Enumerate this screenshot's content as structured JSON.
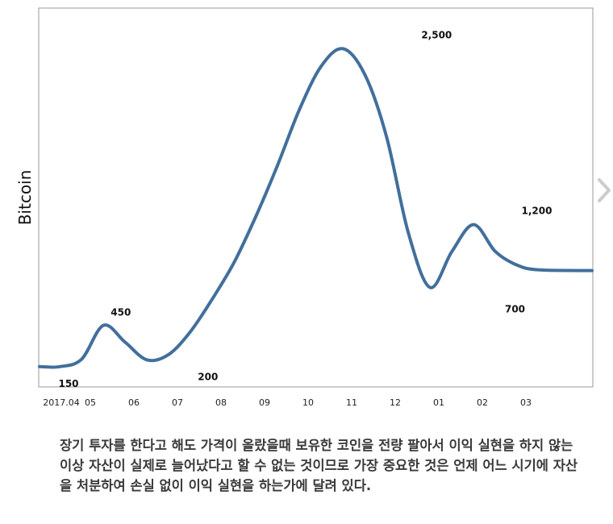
{
  "chart_data": {
    "type": "line",
    "ylabel": "Bitcoin",
    "categories": [
      "2017.04",
      "05",
      "06",
      "07",
      "08",
      "09",
      "10",
      "11",
      "12",
      "01",
      "02",
      "03"
    ],
    "x": [
      0,
      0.3,
      0.8,
      1.3,
      1.8,
      2.3,
      2.8,
      3.3,
      3.8,
      4.3,
      4.8,
      5.3,
      5.8,
      6.3,
      6.8,
      7.3,
      7.8,
      8.3,
      8.8,
      9.3,
      9.8,
      10.3,
      10.8,
      11.3,
      11.55
    ],
    "values": [
      150,
      150,
      205,
      455,
      330,
      200,
      240,
      410,
      650,
      920,
      1260,
      1640,
      2050,
      2370,
      2500,
      2310,
      1850,
      1140,
      735,
      1000,
      1200,
      1000,
      900,
      865,
      860
    ],
    "data_labels": [
      {
        "x": 0.5,
        "value": 150,
        "text": "150",
        "pos": "below"
      },
      {
        "x": 1.7,
        "value": 450,
        "text": "450",
        "pos": "above"
      },
      {
        "x": 3.7,
        "value": 200,
        "text": "200",
        "pos": "below"
      },
      {
        "x": 8.95,
        "value": 2500,
        "text": "2,500",
        "pos": "above"
      },
      {
        "x": 10.75,
        "value": 700,
        "text": "700",
        "pos": "below"
      },
      {
        "x": 11.25,
        "value": 1200,
        "text": "1,200",
        "pos": "above"
      }
    ],
    "xlim": [
      0,
      11.55
    ],
    "ylim": [
      0,
      2800
    ],
    "grid": false,
    "colors": {
      "line": "#426f9c",
      "frame": "#999999",
      "label": "#111111"
    }
  },
  "nav": {
    "next_icon": "chevron-right-icon",
    "color": "#cccccc"
  },
  "caption": {
    "text": "장기 투자를 한다고 해도 가격이 올랐을때 보유한 코인을 전량 팔아서 이익 실현을 하지 않는 이상 자산이 실제로 늘어났다고 할 수 없는 것이므로 가장 중요한 것은 언제 어느 시기에 자산을 처분하여 손실 없이 이익 실현을 하는가에 달려 있다."
  }
}
